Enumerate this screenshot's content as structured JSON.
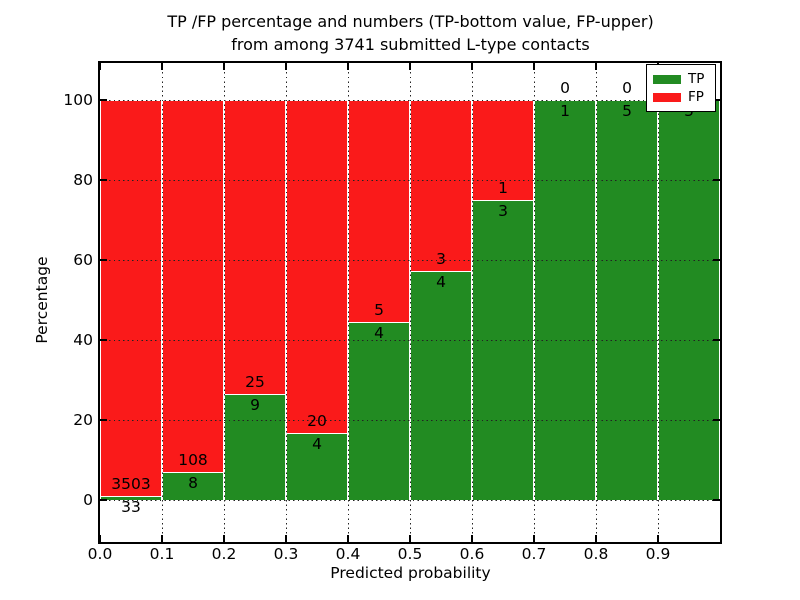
{
  "title": {
    "line1": "TP /FP percentage and numbers (TP-bottom value, FP-upper)",
    "line2": "from among 3741 submitted L-type contacts"
  },
  "axes": {
    "xlabel": "Predicted probability",
    "ylabel": "Percentage",
    "xtick_labels": [
      "0.0",
      "0.1",
      "0.2",
      "0.3",
      "0.4",
      "0.5",
      "0.6",
      "0.7",
      "0.8",
      "0.9"
    ],
    "ytick_values": [
      0,
      20,
      40,
      60,
      80,
      100
    ]
  },
  "legend": {
    "items": [
      {
        "label": "TP",
        "color": "#228b22"
      },
      {
        "label": "FP",
        "color": "#fa1a1a"
      }
    ]
  },
  "colors": {
    "tp": "#228b22",
    "fp": "#fa1a1a",
    "grid": "#222222",
    "frame": "#000000",
    "bar_edge": "#ffffff",
    "background": "#ffffff",
    "text": "#000000"
  },
  "chart_data": {
    "type": "bar",
    "stacked": true,
    "unit": "percent",
    "title": "TP /FP percentage and numbers (TP-bottom value, FP-upper) from among 3741 submitted L-type contacts",
    "xlabel": "Predicted probability",
    "ylabel": "Percentage",
    "total_submitted": 3741,
    "bin_width": 0.1,
    "bin_starts": [
      0.0,
      0.1,
      0.2,
      0.3,
      0.4,
      0.5,
      0.6,
      0.7,
      0.8,
      0.9
    ],
    "series": [
      {
        "name": "TP",
        "color": "#228b22",
        "counts": [
          33,
          8,
          9,
          4,
          4,
          4,
          3,
          1,
          5,
          5
        ]
      },
      {
        "name": "FP",
        "color": "#fa1a1a",
        "counts": [
          3503,
          108,
          25,
          20,
          5,
          3,
          1,
          0,
          0,
          0
        ]
      }
    ],
    "tp_percent": [
      0.93,
      6.9,
      26.47,
      16.67,
      44.44,
      57.14,
      75.0,
      100.0,
      100.0,
      100.0
    ],
    "annotation_note": "FP count printed just above green segment top, TP count just below it; last bin labels partially hidden by legend",
    "xlim": [
      0.0,
      1.0
    ],
    "ylim": [
      -10.5,
      109.5
    ],
    "grid": true,
    "grid_style": "dotted",
    "legend_position": "upper right"
  }
}
